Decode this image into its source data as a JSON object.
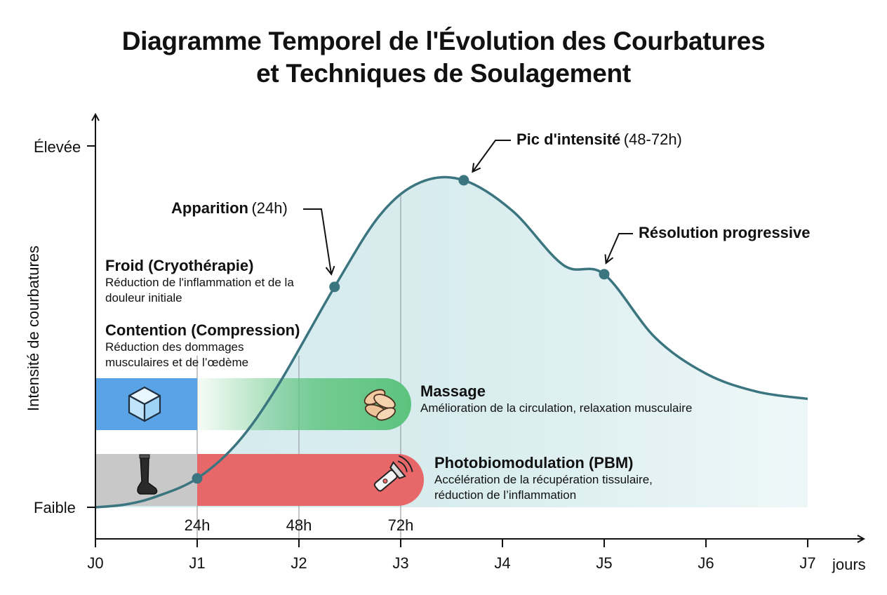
{
  "title_line1": "Diagramme Temporel de l'Évolution des Courbatures",
  "title_line2": "et Techniques de Soulagement",
  "colors": {
    "curve": "#3b7580",
    "fill": "#d7ecee",
    "cold": "#5aa3e6",
    "massage": "#5cc37d",
    "pbm": "#e8686a",
    "compression": "#c8c8c8"
  },
  "chart_data": {
    "type": "area",
    "title": "Diagramme Temporel de l'Évolution des Courbatures et Techniques de Soulagement",
    "xlabel": "jours",
    "ylabel": "Intensité de courbatures",
    "x_ticks": [
      "J0",
      "J1",
      "J2",
      "J3",
      "J4",
      "J5",
      "J6",
      "J7"
    ],
    "hour_ticks": [
      {
        "day": 1,
        "label": "24h"
      },
      {
        "day": 2,
        "label": "48h"
      },
      {
        "day": 3,
        "label": "72h"
      }
    ],
    "y_ticks": [
      {
        "value": 0,
        "label": "Faible"
      },
      {
        "value": 1,
        "label": "Élevée"
      }
    ],
    "xlim": [
      0,
      7
    ],
    "ylim": [
      0,
      1
    ],
    "curve": {
      "x": [
        0,
        0.3,
        0.6,
        1.0,
        1.4,
        1.8,
        2.35,
        2.8,
        3.2,
        3.62,
        4.1,
        4.6,
        5.0,
        5.5,
        6.0,
        6.5,
        7.0
      ],
      "y": [
        0,
        0.008,
        0.03,
        0.08,
        0.18,
        0.34,
        0.61,
        0.81,
        0.9,
        0.905,
        0.82,
        0.67,
        0.645,
        0.47,
        0.37,
        0.32,
        0.3
      ]
    },
    "markers": [
      {
        "x": 1.0,
        "y": 0.08
      },
      {
        "x": 2.35,
        "y": 0.61
      },
      {
        "x": 3.62,
        "y": 0.905
      },
      {
        "x": 5.0,
        "y": 0.645
      }
    ],
    "annotations": [
      {
        "bold": "Apparition",
        "normal": "(24h)"
      },
      {
        "bold": "Pic d'intensité",
        "normal": "(48-72h)"
      },
      {
        "bold": "Résolution progressive",
        "normal": ""
      }
    ],
    "techniques": [
      {
        "name": "Froid (Cryothérapie)",
        "desc": "Réduction de l'inflammation et de la douleur initiale",
        "start": 0,
        "end": 1,
        "icon": "ice-cube-icon"
      },
      {
        "name": "Contention (Compression)",
        "desc": "Réduction des dommages musculaires et de l’œdème",
        "start": 0,
        "end": 1,
        "icon": "compression-sock-icon"
      },
      {
        "name": "Massage",
        "desc": "Amélioration de la circulation, relaxation musculaire",
        "start": 1,
        "end": 3,
        "icon": "massage-hands-icon"
      },
      {
        "name": "Photobiomodulation (PBM)",
        "desc": "Accélération de la récupération tissulaire, réduction de l’inflammation",
        "start": 1,
        "end": 3,
        "icon": "light-device-icon"
      }
    ]
  }
}
